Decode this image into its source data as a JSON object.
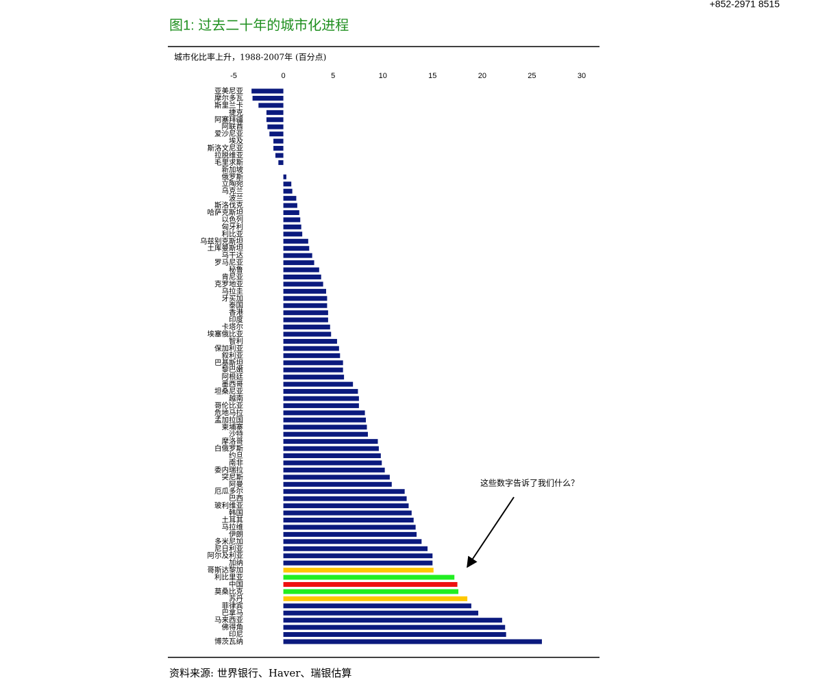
{
  "header": {
    "phone": "+852-2971 8515"
  },
  "chart_data": {
    "type": "barh",
    "title": "图1: 过去二十年的城市化进程",
    "subtitle": "城市化比率上升，1988-2007年 (百分点)",
    "source": "资料来源: 世界银行、Haver、瑞银估算",
    "annotation": "这些数字告诉了我们什么？",
    "categories": [
      "亚美尼亚",
      "摩尔多瓦",
      "斯里兰卡",
      "捷克",
      "阿塞拜疆",
      "阿联酋",
      "爱沙尼亚",
      "埃及",
      "斯洛文尼亚",
      "拉脱维亚",
      "毛里求斯",
      "新加坡",
      "俄罗斯",
      "立陶宛",
      "乌克兰",
      "波兰",
      "斯洛伐克",
      "哈萨克斯坦",
      "以色列",
      "匈牙利",
      "利比亚",
      "乌兹别克斯坦",
      "土库曼斯坦",
      "乌干达",
      "罗马尼亚",
      "秘鲁",
      "肯尼亚",
      "克罗地亚",
      "乌拉圭",
      "牙买加",
      "泰国",
      "香港",
      "印度",
      "卡塔尔",
      "埃塞俄比亚",
      "智利",
      "保加利亚",
      "叙利亚",
      "巴基斯坦",
      "黎巴嫩",
      "阿根廷",
      "墨西哥",
      "坦桑尼亚",
      "越南",
      "哥伦比亚",
      "危地马拉",
      "孟加拉国",
      "柬埔寨",
      "沙特",
      "摩洛哥",
      "白俄罗斯",
      "约旦",
      "南非",
      "委内瑞拉",
      "突尼斯",
      "阿曼",
      "厄瓜多尔",
      "巴西",
      "玻利维亚",
      "韩国",
      "土耳其",
      "马拉维",
      "伊朗",
      "多米尼加",
      "尼日利亚",
      "阿尔及利亚",
      "加纳",
      "哥斯达黎加",
      "利比里亚",
      "中国",
      "莫桑比克",
      "苏丹",
      "菲律宾",
      "巴拿马",
      "马来西亚",
      "佛得角",
      "印尼",
      "博茨瓦纳"
    ],
    "values": [
      -3.2,
      -3.1,
      -2.5,
      -1.7,
      -1.7,
      -1.6,
      -1.4,
      -1.0,
      -1.0,
      -0.8,
      -0.5,
      0,
      0.3,
      0.8,
      0.9,
      1.3,
      1.4,
      1.6,
      1.7,
      1.8,
      1.9,
      2.5,
      2.6,
      2.9,
      3.1,
      3.6,
      3.8,
      4.0,
      4.3,
      4.4,
      4.4,
      4.5,
      4.5,
      4.7,
      4.8,
      5.4,
      5.6,
      5.7,
      6.0,
      6.0,
      6.1,
      7.0,
      7.5,
      7.6,
      7.6,
      8.2,
      8.3,
      8.4,
      8.5,
      9.5,
      9.6,
      9.8,
      9.9,
      10.2,
      10.7,
      10.9,
      12.2,
      12.4,
      12.6,
      12.9,
      13.1,
      13.3,
      13.4,
      13.9,
      14.5,
      15.0,
      15.0,
      15.1,
      17.2,
      17.5,
      17.6,
      18.5,
      18.9,
      19.6,
      22.0,
      22.3,
      22.4,
      26.0
    ],
    "color": "#0b1a7e",
    "highlight": {
      "67": "#ffc800",
      "68": "#22ee22",
      "69": "#ee1111",
      "70": "#22ee22",
      "71": "#ffc800"
    },
    "xlim": [
      -5,
      30
    ],
    "xticks": [
      -5,
      0,
      5,
      10,
      15,
      20,
      25,
      30
    ]
  }
}
